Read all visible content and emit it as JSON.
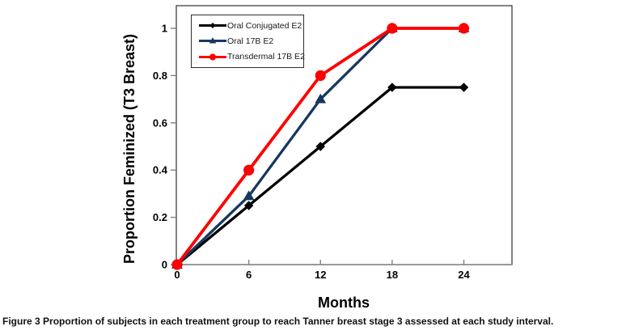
{
  "figure": {
    "caption_label": "Figure 3",
    "caption_text": "Proportion of subjects in each treatment group to reach Tanner breast stage 3 assessed at each study interval."
  },
  "chart_data": {
    "type": "line",
    "title": "",
    "xlabel": "Months",
    "ylabel": "Proportion Feminized (T3 Breast)",
    "x": [
      0,
      6,
      12,
      18,
      24
    ],
    "xtick_labels": [
      "0",
      "6",
      "12",
      "18",
      "24"
    ],
    "ytick_labels": [
      "0",
      "0.2",
      "0.4",
      "0.6",
      "0.8",
      "1"
    ],
    "xlim": [
      0,
      28
    ],
    "ylim": [
      0,
      1.1
    ],
    "grid": false,
    "legend_position": "upper-left-inside",
    "series": [
      {
        "name": "Oral Conjugated E2",
        "color": "#000000",
        "marker": "diamond",
        "values": [
          0,
          0.25,
          0.5,
          0.75,
          0.75
        ]
      },
      {
        "name": "Oral 17B E2",
        "color": "#17375e",
        "marker": "triangle",
        "values": [
          0,
          0.29,
          0.7,
          1,
          1
        ]
      },
      {
        "name": "Transdermal 17B E2",
        "color": "#fe0000",
        "marker": "circle",
        "values": [
          0,
          0.4,
          0.8,
          1,
          1
        ]
      }
    ]
  }
}
